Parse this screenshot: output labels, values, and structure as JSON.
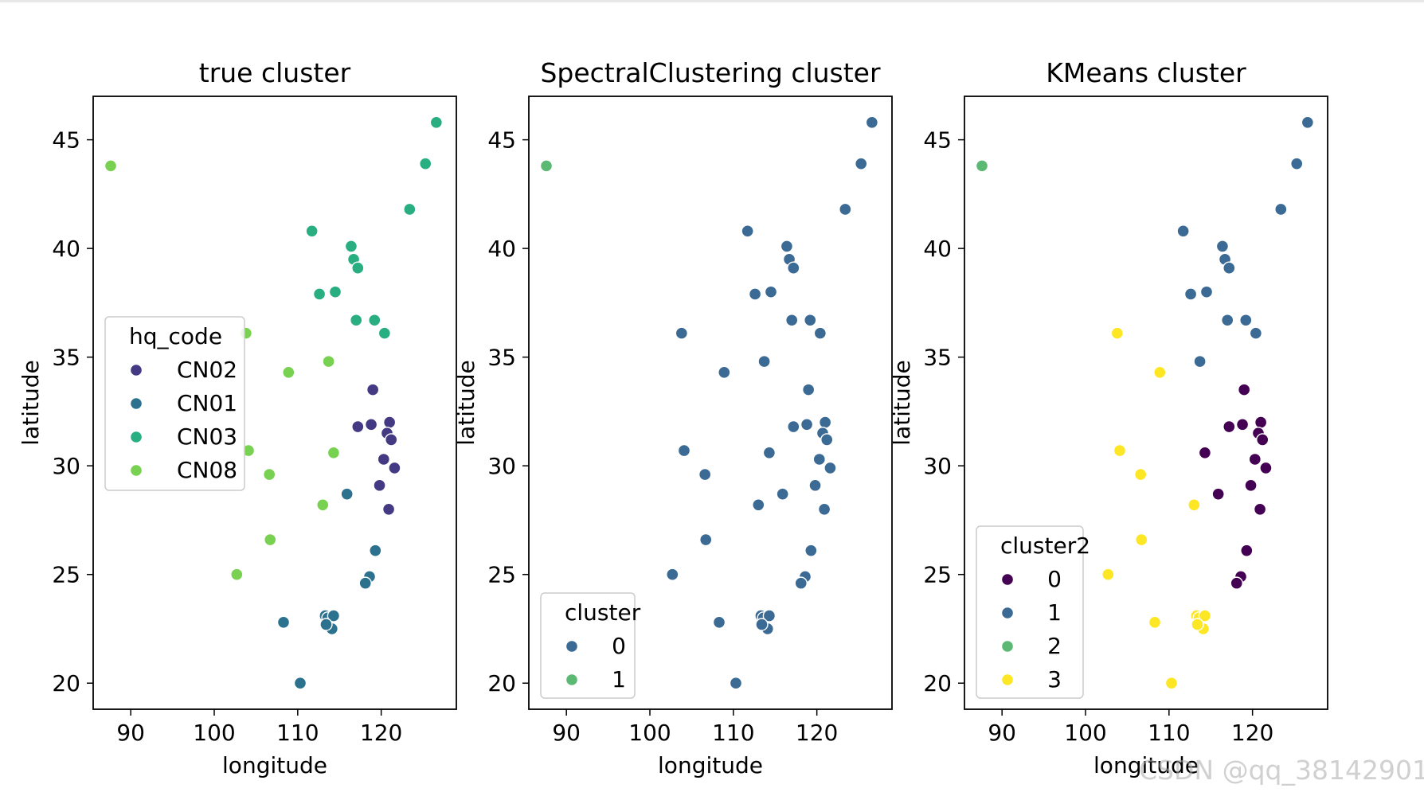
{
  "watermark": "CSDN @qq_38142901",
  "chart_data": [
    {
      "type": "scatter",
      "title": "true cluster",
      "xlabel": "longitude",
      "ylabel": "latitude",
      "xlim": [
        85.5,
        129
      ],
      "ylim": [
        18.8,
        47
      ],
      "xticks": [
        90,
        100,
        110,
        120
      ],
      "yticks": [
        20,
        25,
        30,
        35,
        40,
        45
      ],
      "legend": {
        "title": "hq_code",
        "placement": "center-left"
      },
      "series": [
        {
          "name": "CN02",
          "color": "#433a83",
          "points": [
            [
              119.0,
              33.5
            ],
            [
              117.2,
              31.8
            ],
            [
              118.8,
              31.9
            ],
            [
              121.0,
              32.0
            ],
            [
              120.7,
              31.5
            ],
            [
              121.2,
              31.2
            ],
            [
              120.3,
              30.3
            ],
            [
              121.6,
              29.9
            ],
            [
              119.8,
              29.1
            ],
            [
              120.9,
              28.0
            ]
          ]
        },
        {
          "name": "CN01",
          "color": "#2c728e",
          "points": [
            [
              115.9,
              28.7
            ],
            [
              119.3,
              26.1
            ],
            [
              118.6,
              24.9
            ],
            [
              118.1,
              24.6
            ],
            [
              113.3,
              23.1
            ],
            [
              114.1,
              22.5
            ],
            [
              113.6,
              23.0
            ],
            [
              114.3,
              23.1
            ],
            [
              113.4,
              22.7
            ],
            [
              108.3,
              22.8
            ],
            [
              110.3,
              20.0
            ]
          ]
        },
        {
          "name": "CN03",
          "color": "#28ae80",
          "points": [
            [
              126.6,
              45.8
            ],
            [
              125.3,
              43.9
            ],
            [
              123.4,
              41.8
            ],
            [
              111.7,
              40.8
            ],
            [
              116.4,
              40.1
            ],
            [
              116.7,
              39.5
            ],
            [
              117.2,
              39.1
            ],
            [
              112.6,
              37.9
            ],
            [
              114.5,
              38.0
            ],
            [
              117.0,
              36.7
            ],
            [
              119.2,
              36.7
            ],
            [
              120.4,
              36.1
            ]
          ]
        },
        {
          "name": "CN08",
          "color": "#79d151",
          "points": [
            [
              87.6,
              43.8
            ],
            [
              103.8,
              36.1
            ],
            [
              108.9,
              34.3
            ],
            [
              113.7,
              34.8
            ],
            [
              104.1,
              30.7
            ],
            [
              114.3,
              30.6
            ],
            [
              106.6,
              29.6
            ],
            [
              113.0,
              28.2
            ],
            [
              106.7,
              26.6
            ],
            [
              102.7,
              25.0
            ]
          ]
        }
      ]
    },
    {
      "type": "scatter",
      "title": "SpectralClustering cluster",
      "xlabel": "longitude",
      "ylabel": "latitude",
      "xlim": [
        85.5,
        129
      ],
      "ylim": [
        18.8,
        47
      ],
      "xticks": [
        90,
        100,
        110,
        120
      ],
      "yticks": [
        20,
        25,
        30,
        35,
        40,
        45
      ],
      "legend": {
        "title": "cluster",
        "placement": "lower-left"
      },
      "series": [
        {
          "name": "0",
          "color": "#3b6a94",
          "points": [
            [
              126.6,
              45.8
            ],
            [
              125.3,
              43.9
            ],
            [
              123.4,
              41.8
            ],
            [
              111.7,
              40.8
            ],
            [
              116.4,
              40.1
            ],
            [
              116.7,
              39.5
            ],
            [
              117.2,
              39.1
            ],
            [
              112.6,
              37.9
            ],
            [
              114.5,
              38.0
            ],
            [
              117.0,
              36.7
            ],
            [
              119.2,
              36.7
            ],
            [
              120.4,
              36.1
            ],
            [
              103.8,
              36.1
            ],
            [
              108.9,
              34.3
            ],
            [
              113.7,
              34.8
            ],
            [
              119.0,
              33.5
            ],
            [
              117.2,
              31.8
            ],
            [
              118.8,
              31.9
            ],
            [
              121.0,
              32.0
            ],
            [
              120.7,
              31.5
            ],
            [
              121.2,
              31.2
            ],
            [
              104.1,
              30.7
            ],
            [
              114.3,
              30.6
            ],
            [
              120.3,
              30.3
            ],
            [
              121.6,
              29.9
            ],
            [
              106.6,
              29.6
            ],
            [
              119.8,
              29.1
            ],
            [
              115.9,
              28.7
            ],
            [
              113.0,
              28.2
            ],
            [
              120.9,
              28.0
            ],
            [
              106.7,
              26.6
            ],
            [
              119.3,
              26.1
            ],
            [
              102.7,
              25.0
            ],
            [
              118.6,
              24.9
            ],
            [
              118.1,
              24.6
            ],
            [
              113.3,
              23.1
            ],
            [
              114.1,
              22.5
            ],
            [
              113.6,
              23.0
            ],
            [
              114.3,
              23.1
            ],
            [
              113.4,
              22.7
            ],
            [
              108.3,
              22.8
            ],
            [
              110.3,
              20.0
            ]
          ]
        },
        {
          "name": "1",
          "color": "#5cb974",
          "points": [
            [
              87.6,
              43.8
            ]
          ]
        }
      ]
    },
    {
      "type": "scatter",
      "title": "KMeans cluster",
      "xlabel": "longitude",
      "ylabel": "latitude",
      "xlim": [
        85.5,
        129
      ],
      "ylim": [
        18.8,
        47
      ],
      "xticks": [
        90,
        100,
        110,
        120
      ],
      "yticks": [
        20,
        25,
        30,
        35,
        40,
        45
      ],
      "legend": {
        "title": "cluster2",
        "placement": "lower-left"
      },
      "series": [
        {
          "name": "0",
          "color": "#440154",
          "points": [
            [
              119.0,
              33.5
            ],
            [
              117.2,
              31.8
            ],
            [
              118.8,
              31.9
            ],
            [
              121.0,
              32.0
            ],
            [
              120.7,
              31.5
            ],
            [
              121.2,
              31.2
            ],
            [
              114.3,
              30.6
            ],
            [
              120.3,
              30.3
            ],
            [
              121.6,
              29.9
            ],
            [
              119.8,
              29.1
            ],
            [
              115.9,
              28.7
            ],
            [
              120.9,
              28.0
            ],
            [
              119.3,
              26.1
            ],
            [
              118.6,
              24.9
            ],
            [
              118.1,
              24.6
            ]
          ]
        },
        {
          "name": "1",
          "color": "#3b6a94",
          "points": [
            [
              126.6,
              45.8
            ],
            [
              125.3,
              43.9
            ],
            [
              123.4,
              41.8
            ],
            [
              111.7,
              40.8
            ],
            [
              116.4,
              40.1
            ],
            [
              116.7,
              39.5
            ],
            [
              117.2,
              39.1
            ],
            [
              112.6,
              37.9
            ],
            [
              114.5,
              38.0
            ],
            [
              117.0,
              36.7
            ],
            [
              119.2,
              36.7
            ],
            [
              120.4,
              36.1
            ],
            [
              113.7,
              34.8
            ]
          ]
        },
        {
          "name": "2",
          "color": "#5cb974",
          "points": [
            [
              87.6,
              43.8
            ]
          ]
        },
        {
          "name": "3",
          "color": "#fde725",
          "points": [
            [
              103.8,
              36.1
            ],
            [
              108.9,
              34.3
            ],
            [
              104.1,
              30.7
            ],
            [
              106.6,
              29.6
            ],
            [
              113.0,
              28.2
            ],
            [
              106.7,
              26.6
            ],
            [
              102.7,
              25.0
            ],
            [
              113.3,
              23.1
            ],
            [
              114.1,
              22.5
            ],
            [
              113.6,
              23.0
            ],
            [
              114.3,
              23.1
            ],
            [
              113.4,
              22.7
            ],
            [
              108.3,
              22.8
            ],
            [
              110.3,
              20.0
            ]
          ]
        }
      ]
    }
  ]
}
